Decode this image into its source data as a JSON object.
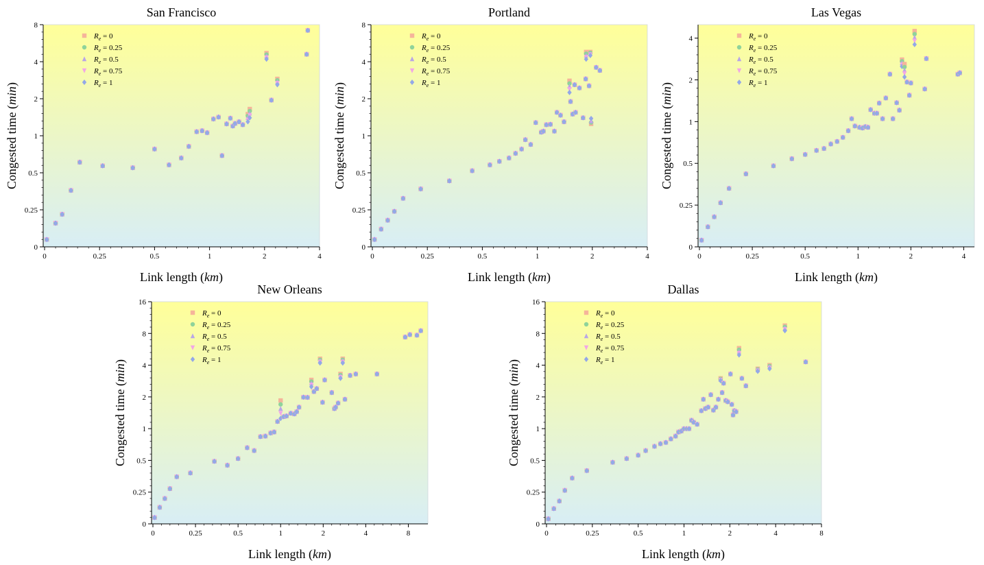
{
  "figure": {
    "xlabel_text": "Link length (",
    "xlabel_unit": "km",
    "xlabel_close": ")",
    "ylabel_text": "Congested time (",
    "ylabel_unit": "min",
    "ylabel_close": ")"
  },
  "legend": [
    {
      "label": "R_e = 0",
      "color": "#f5b59a",
      "marker": "square"
    },
    {
      "label": "R_e = 0.25",
      "color": "#8fd39a",
      "marker": "circle"
    },
    {
      "label": "R_e = 0.5",
      "color": "#b9a6e6",
      "marker": "triangle-up"
    },
    {
      "label": "R_e = 0.75",
      "color": "#f2a6e6",
      "marker": "triangle-down"
    },
    {
      "label": "R_e = 1",
      "color": "#93a8e8",
      "marker": "diamond"
    }
  ],
  "colors": {
    "bg_top": "#ffff99",
    "bg_bottom": "#d8eef5"
  },
  "chart_data": [
    {
      "type": "scatter",
      "title": "San Francisco",
      "xscale": "symlog-like",
      "yscale": "symlog-like",
      "xlim": [
        0,
        4
      ],
      "ylim": [
        0,
        8
      ],
      "xticks": [
        0,
        0.25,
        0.5,
        1,
        2,
        4
      ],
      "xtick_labels": [
        "0",
        "0.25",
        "0.5",
        "1",
        "2",
        "4"
      ],
      "yticks": [
        0,
        0.25,
        0.5,
        1,
        2,
        4,
        8
      ],
      "ytick_labels": [
        "0",
        "0.25",
        "0.5",
        "1",
        "2",
        "4",
        "8"
      ],
      "points": [
        [
          0.01,
          0.05
        ],
        [
          0.05,
          0.16
        ],
        [
          0.08,
          0.22
        ],
        [
          0.12,
          0.36
        ],
        [
          0.16,
          0.61
        ],
        [
          0.26,
          0.57
        ],
        [
          0.38,
          0.55
        ],
        [
          0.5,
          0.78
        ],
        [
          0.6,
          0.58
        ],
        [
          0.7,
          0.66
        ],
        [
          0.77,
          0.82
        ],
        [
          0.85,
          1.08
        ],
        [
          0.91,
          1.1
        ],
        [
          0.97,
          1.06
        ],
        [
          1.05,
          1.37
        ],
        [
          1.12,
          1.42
        ],
        [
          1.17,
          0.69
        ],
        [
          1.24,
          1.25
        ],
        [
          1.3,
          1.39
        ],
        [
          1.34,
          1.2
        ],
        [
          1.38,
          1.26
        ],
        [
          1.45,
          1.3
        ],
        [
          1.52,
          1.23
        ],
        [
          1.62,
          0.86
        ],
        [
          1.66,
          1.5
        ],
        [
          2.05,
          4.2
        ],
        [
          2.18,
          1.95
        ],
        [
          2.35,
          2.6
        ],
        [
          3.4,
          4.6
        ],
        [
          3.45,
          7.2
        ]
      ],
      "offsets": [
        [
          1.62,
          1.5,
          1.3
        ],
        [
          1.66,
          1.65,
          1.4
        ],
        [
          2.05,
          4.7,
          4.2
        ],
        [
          2.35,
          2.9,
          2.6
        ]
      ]
    },
    {
      "type": "scatter",
      "title": "Portland",
      "xscale": "symlog-like",
      "yscale": "symlog-like",
      "xlim": [
        0,
        4
      ],
      "ylim": [
        0,
        8
      ],
      "xticks": [
        0,
        0.25,
        0.5,
        1,
        2,
        4
      ],
      "xtick_labels": [
        "0",
        "0.25",
        "0.5",
        "1",
        "2",
        "4"
      ],
      "yticks": [
        0,
        0.25,
        0.5,
        1,
        2,
        4,
        8
      ],
      "ytick_labels": [
        "0",
        "0.25",
        "0.5",
        "1",
        "2",
        "4",
        "8"
      ],
      "points": [
        [
          0.01,
          0.05
        ],
        [
          0.04,
          0.12
        ],
        [
          0.07,
          0.18
        ],
        [
          0.1,
          0.24
        ],
        [
          0.14,
          0.31
        ],
        [
          0.22,
          0.37
        ],
        [
          0.33,
          0.43
        ],
        [
          0.44,
          0.52
        ],
        [
          0.55,
          0.58
        ],
        [
          0.62,
          0.62
        ],
        [
          0.7,
          0.66
        ],
        [
          0.76,
          0.72
        ],
        [
          0.82,
          0.78
        ],
        [
          0.86,
          0.93
        ],
        [
          0.92,
          0.85
        ],
        [
          0.98,
          1.28
        ],
        [
          1.05,
          1.07
        ],
        [
          1.08,
          1.09
        ],
        [
          1.12,
          1.23
        ],
        [
          1.18,
          1.24
        ],
        [
          1.24,
          1.09
        ],
        [
          1.28,
          1.55
        ],
        [
          1.34,
          1.47
        ],
        [
          1.4,
          1.3
        ],
        [
          1.5,
          2.25
        ],
        [
          1.56,
          1.5
        ],
        [
          1.62,
          1.55
        ],
        [
          1.7,
          2.45
        ],
        [
          1.78,
          1.4
        ],
        [
          1.84,
          2.9
        ],
        [
          1.92,
          2.55
        ],
        [
          1.97,
          1.38
        ],
        [
          2.1,
          3.6
        ],
        [
          2.2,
          3.4
        ],
        [
          1.52,
          1.9
        ],
        [
          1.6,
          2.6
        ],
        [
          1.85,
          4.2
        ],
        [
          1.95,
          4.5
        ]
      ],
      "offsets": [
        [
          1.5,
          2.8,
          2.25
        ],
        [
          1.85,
          4.8,
          4.2
        ],
        [
          1.95,
          4.8,
          4.5
        ],
        [
          1.97,
          1.25,
          1.38
        ]
      ]
    },
    {
      "type": "scatter",
      "title": "Las Vegas",
      "xscale": "symlog-like",
      "yscale": "symlog-like",
      "xlim": [
        0,
        4.6
      ],
      "ylim": [
        0,
        5
      ],
      "xticks": [
        0,
        0.25,
        0.5,
        1,
        2,
        4
      ],
      "xtick_labels": [
        "0",
        "0.25",
        "0.5",
        "1",
        "2",
        "4"
      ],
      "yticks": [
        0,
        0.25,
        0.5,
        1,
        2,
        4
      ],
      "ytick_labels": [
        "0",
        "0.25",
        "0.5",
        "1",
        "2",
        "4"
      ],
      "points": [
        [
          0.01,
          0.04
        ],
        [
          0.04,
          0.12
        ],
        [
          0.07,
          0.18
        ],
        [
          0.1,
          0.26
        ],
        [
          0.14,
          0.33
        ],
        [
          0.22,
          0.42
        ],
        [
          0.33,
          0.48
        ],
        [
          0.42,
          0.54
        ],
        [
          0.5,
          0.58
        ],
        [
          0.58,
          0.62
        ],
        [
          0.64,
          0.64
        ],
        [
          0.7,
          0.69
        ],
        [
          0.76,
          0.72
        ],
        [
          0.82,
          0.77
        ],
        [
          0.88,
          0.86
        ],
        [
          0.92,
          1.05
        ],
        [
          0.96,
          0.93
        ],
        [
          1.02,
          0.91
        ],
        [
          1.06,
          0.9
        ],
        [
          1.1,
          0.92
        ],
        [
          1.14,
          0.91
        ],
        [
          1.18,
          1.22
        ],
        [
          1.24,
          1.15
        ],
        [
          1.28,
          1.15
        ],
        [
          1.32,
          1.36
        ],
        [
          1.38,
          1.05
        ],
        [
          1.44,
          1.48
        ],
        [
          1.52,
          2.2
        ],
        [
          1.58,
          1.05
        ],
        [
          1.66,
          1.37
        ],
        [
          1.72,
          1.21
        ],
        [
          1.78,
          2.5
        ],
        [
          1.84,
          2.1
        ],
        [
          1.9,
          1.93
        ],
        [
          1.96,
          1.55
        ],
        [
          2.0,
          1.9
        ],
        [
          2.1,
          3.6
        ],
        [
          2.4,
          1.72
        ],
        [
          2.45,
          2.85
        ],
        [
          3.7,
          2.2
        ],
        [
          3.8,
          2.25
        ]
      ],
      "offsets": [
        [
          1.84,
          2.6,
          2.1
        ],
        [
          2.1,
          4.5,
          3.6
        ],
        [
          1.78,
          2.8,
          2.5
        ]
      ]
    },
    {
      "type": "scatter",
      "title": "New Orleans",
      "xscale": "symlog-like",
      "yscale": "symlog-like",
      "xlim": [
        0,
        11
      ],
      "ylim": [
        0,
        16
      ],
      "xticks": [
        0,
        0.25,
        0.5,
        1,
        2,
        4,
        8
      ],
      "xtick_labels": [
        "0",
        "0.25",
        "0.5",
        "1",
        "2",
        "4",
        "8"
      ],
      "yticks": [
        0,
        0.25,
        0.5,
        1,
        2,
        4,
        8,
        16
      ],
      "ytick_labels": [
        "0",
        "0.25",
        "0.5",
        "1",
        "2",
        "4",
        "8",
        "16"
      ],
      "points": [
        [
          0.01,
          0.05
        ],
        [
          0.04,
          0.13
        ],
        [
          0.07,
          0.2
        ],
        [
          0.1,
          0.27
        ],
        [
          0.14,
          0.35
        ],
        [
          0.22,
          0.38
        ],
        [
          0.34,
          0.49
        ],
        [
          0.42,
          0.45
        ],
        [
          0.5,
          0.52
        ],
        [
          0.58,
          0.66
        ],
        [
          0.65,
          0.62
        ],
        [
          0.72,
          0.84
        ],
        [
          0.78,
          0.85
        ],
        [
          0.85,
          0.91
        ],
        [
          0.9,
          0.93
        ],
        [
          0.95,
          1.17
        ],
        [
          1.0,
          1.25
        ],
        [
          1.05,
          1.3
        ],
        [
          1.1,
          1.32
        ],
        [
          1.18,
          1.4
        ],
        [
          1.25,
          1.38
        ],
        [
          1.3,
          1.45
        ],
        [
          1.35,
          1.6
        ],
        [
          1.45,
          1.99
        ],
        [
          1.55,
          1.98
        ],
        [
          1.65,
          2.5
        ],
        [
          1.72,
          2.25
        ],
        [
          1.8,
          2.4
        ],
        [
          1.9,
          3.0
        ],
        [
          1.98,
          1.78
        ],
        [
          2.05,
          2.9
        ],
        [
          2.3,
          2.2
        ],
        [
          2.4,
          1.55
        ],
        [
          2.45,
          1.6
        ],
        [
          2.55,
          1.75
        ],
        [
          2.65,
          3.0
        ],
        [
          2.75,
          4.2
        ],
        [
          2.85,
          1.9
        ],
        [
          3.1,
          3.2
        ],
        [
          3.4,
          3.3
        ],
        [
          4.8,
          3.3
        ],
        [
          7.6,
          7.4
        ],
        [
          8.2,
          7.8
        ],
        [
          9.2,
          7.7
        ],
        [
          9.8,
          8.5
        ]
      ],
      "offsets": [
        [
          1.9,
          4.6,
          4.2
        ],
        [
          2.65,
          3.3,
          3.0
        ],
        [
          2.75,
          4.6,
          4.2
        ],
        [
          1.65,
          2.9,
          2.5
        ],
        [
          1.0,
          1.85,
          1.25
        ]
      ]
    },
    {
      "type": "scatter",
      "title": "Dallas",
      "xscale": "symlog-like",
      "yscale": "symlog-like",
      "xlim": [
        0,
        8
      ],
      "ylim": [
        0,
        16
      ],
      "xticks": [
        0,
        0.25,
        0.5,
        1,
        2,
        4,
        8
      ],
      "xtick_labels": [
        "0",
        "0.25",
        "0.5",
        "1",
        "2",
        "4",
        "8"
      ],
      "yticks": [
        0,
        0.25,
        0.5,
        1,
        2,
        4,
        8,
        16
      ],
      "ytick_labels": [
        "0",
        "0.25",
        "0.5",
        "1",
        "2",
        "4",
        "8",
        "16"
      ],
      "points": [
        [
          0.01,
          0.04
        ],
        [
          0.04,
          0.12
        ],
        [
          0.07,
          0.18
        ],
        [
          0.1,
          0.26
        ],
        [
          0.14,
          0.34
        ],
        [
          0.22,
          0.4
        ],
        [
          0.34,
          0.48
        ],
        [
          0.42,
          0.52
        ],
        [
          0.5,
          0.56
        ],
        [
          0.56,
          0.62
        ],
        [
          0.64,
          0.68
        ],
        [
          0.7,
          0.72
        ],
        [
          0.76,
          0.74
        ],
        [
          0.82,
          0.8
        ],
        [
          0.88,
          0.85
        ],
        [
          0.92,
          0.93
        ],
        [
          0.96,
          0.95
        ],
        [
          1.0,
          1.0
        ],
        [
          1.04,
          1.0
        ],
        [
          1.08,
          1.0
        ],
        [
          1.12,
          1.2
        ],
        [
          1.16,
          1.15
        ],
        [
          1.22,
          1.1
        ],
        [
          1.3,
          1.48
        ],
        [
          1.34,
          1.9
        ],
        [
          1.38,
          1.55
        ],
        [
          1.44,
          1.6
        ],
        [
          1.5,
          2.1
        ],
        [
          1.56,
          1.5
        ],
        [
          1.62,
          1.6
        ],
        [
          1.68,
          1.9
        ],
        [
          1.74,
          2.85
        ],
        [
          1.78,
          2.2
        ],
        [
          1.82,
          2.7
        ],
        [
          1.88,
          1.85
        ],
        [
          1.94,
          1.8
        ],
        [
          2.02,
          3.3
        ],
        [
          2.06,
          1.7
        ],
        [
          2.1,
          1.35
        ],
        [
          2.14,
          1.48
        ],
        [
          2.2,
          1.45
        ],
        [
          2.3,
          5.0
        ],
        [
          2.4,
          3.0
        ],
        [
          2.55,
          2.55
        ],
        [
          3.05,
          3.5
        ],
        [
          3.65,
          3.7
        ],
        [
          4.6,
          8.5
        ],
        [
          6.3,
          4.3
        ]
      ],
      "offsets": [
        [
          1.74,
          3.0,
          2.85
        ],
        [
          2.3,
          5.8,
          5.0
        ],
        [
          3.05,
          3.7,
          3.5
        ],
        [
          3.65,
          4.0,
          3.7
        ],
        [
          4.6,
          9.5,
          8.5
        ]
      ]
    }
  ]
}
